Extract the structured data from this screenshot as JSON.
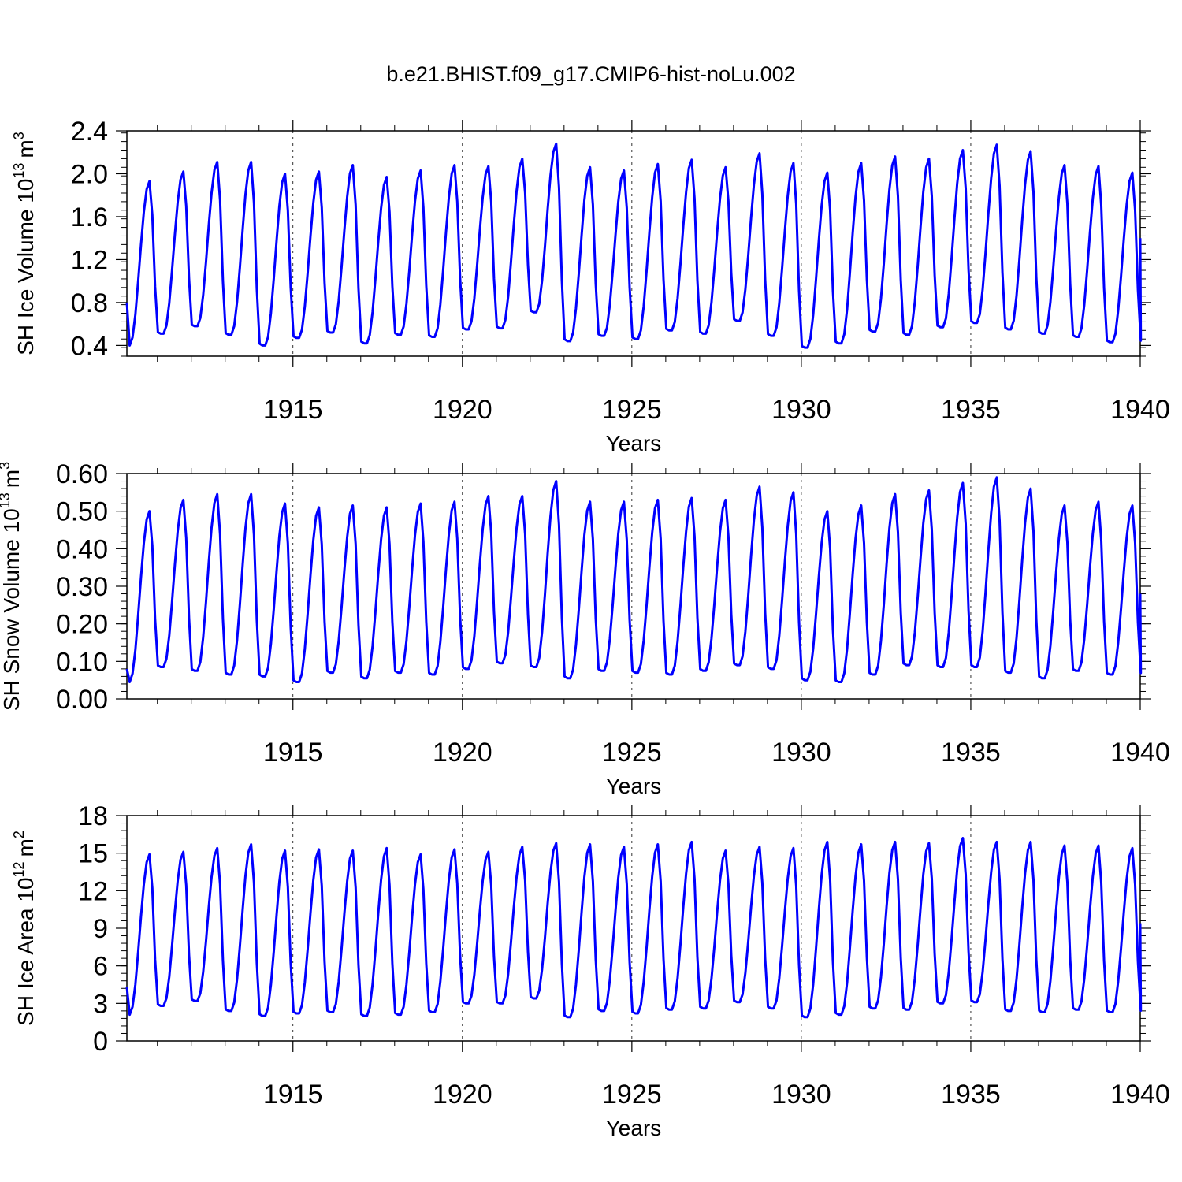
{
  "title": "b.e21.BHIST.f09_g17.CMIP6-hist-noLu.002",
  "line_color": "#0000ff",
  "chart_data": [
    {
      "type": "line",
      "ylabel": "SH Ice Volume 10",
      "ylabel_exp": "13",
      "ylabel_unit": "m",
      "ylabel_unit_exp": "3",
      "xlabel": "Years",
      "xlim": [
        1910.1,
        1940.0
      ],
      "ylim": [
        0.3,
        2.4
      ],
      "yticks": [
        "2.4",
        "2.0",
        "1.6",
        "1.2",
        "0.8",
        "0.4"
      ],
      "ytick_values": [
        2.4,
        2.0,
        1.6,
        1.2,
        0.8,
        0.4
      ],
      "xticks": [
        "1915",
        "1920",
        "1925",
        "1930",
        "1935",
        "1940"
      ],
      "start": 0.8,
      "maxima": [
        1.93,
        2.02,
        2.11,
        2.11,
        2.0,
        2.02,
        2.08,
        1.97,
        2.03,
        2.08,
        2.07,
        2.14,
        2.28,
        2.06,
        2.03,
        2.09,
        2.13,
        2.06,
        2.19,
        2.1,
        2.01,
        2.1,
        2.16,
        2.14,
        2.22,
        2.27,
        2.21,
        2.08,
        2.07,
        2.01
      ],
      "minima": [
        0.4,
        0.51,
        0.58,
        0.5,
        0.4,
        0.47,
        0.52,
        0.42,
        0.5,
        0.48,
        0.55,
        0.56,
        0.71,
        0.44,
        0.49,
        0.46,
        0.54,
        0.51,
        0.63,
        0.49,
        0.38,
        0.42,
        0.53,
        0.5,
        0.57,
        0.61,
        0.55,
        0.51,
        0.48,
        0.43
      ],
      "end": 1.4
    },
    {
      "type": "line",
      "ylabel": "SH Snow Volume 10",
      "ylabel_exp": "13",
      "ylabel_unit": "m",
      "ylabel_unit_exp": "3",
      "xlabel": "Years",
      "xlim": [
        1910.1,
        1940.0
      ],
      "ylim": [
        0.0,
        0.6
      ],
      "yticks": [
        "0.60",
        "0.50",
        "0.40",
        "0.30",
        "0.20",
        "0.10",
        "0.00"
      ],
      "ytick_values": [
        0.6,
        0.5,
        0.4,
        0.3,
        0.2,
        0.1,
        0.0
      ],
      "xticks": [
        "1915",
        "1920",
        "1925",
        "1930",
        "1935",
        "1940"
      ],
      "start": 0.08,
      "maxima": [
        0.5,
        0.53,
        0.545,
        0.545,
        0.52,
        0.51,
        0.515,
        0.51,
        0.52,
        0.525,
        0.54,
        0.54,
        0.58,
        0.525,
        0.525,
        0.53,
        0.535,
        0.53,
        0.565,
        0.55,
        0.5,
        0.515,
        0.545,
        0.555,
        0.575,
        0.59,
        0.56,
        0.515,
        0.525,
        0.515
      ],
      "minima": [
        0.045,
        0.085,
        0.075,
        0.065,
        0.06,
        0.045,
        0.07,
        0.055,
        0.07,
        0.065,
        0.08,
        0.095,
        0.085,
        0.055,
        0.075,
        0.07,
        0.065,
        0.075,
        0.09,
        0.08,
        0.05,
        0.045,
        0.065,
        0.09,
        0.085,
        0.085,
        0.07,
        0.055,
        0.075,
        0.065
      ],
      "end": 0.28
    },
    {
      "type": "line",
      "ylabel": "SH Ice Area 10",
      "ylabel_exp": "12",
      "ylabel_unit": "m",
      "ylabel_unit_exp": "2",
      "xlabel": "Years",
      "xlim": [
        1910.1,
        1940.0
      ],
      "ylim": [
        0,
        18
      ],
      "yticks": [
        "18",
        "15",
        "12",
        "9",
        "6",
        "3",
        "0"
      ],
      "ytick_values": [
        18,
        15,
        12,
        9,
        6,
        3,
        0
      ],
      "xticks": [
        "1915",
        "1920",
        "1925",
        "1930",
        "1935",
        "1940"
      ],
      "start": 4.3,
      "maxima": [
        14.9,
        15.1,
        15.4,
        15.7,
        15.2,
        15.3,
        15.2,
        15.4,
        14.9,
        15.3,
        15.1,
        15.5,
        15.8,
        15.7,
        15.5,
        15.7,
        15.9,
        15.2,
        15.5,
        15.4,
        15.9,
        15.7,
        15.9,
        15.8,
        16.2,
        15.9,
        15.9,
        15.6,
        15.6,
        15.4
      ],
      "minima": [
        2.1,
        2.8,
        3.2,
        2.4,
        2.0,
        2.2,
        2.3,
        2.0,
        2.1,
        2.3,
        3.0,
        3.0,
        3.4,
        1.9,
        2.4,
        2.2,
        2.5,
        2.6,
        3.1,
        2.6,
        1.9,
        2.1,
        2.6,
        2.5,
        3.0,
        3.1,
        2.4,
        2.3,
        2.5,
        2.3
      ],
      "end": 9.4
    }
  ]
}
